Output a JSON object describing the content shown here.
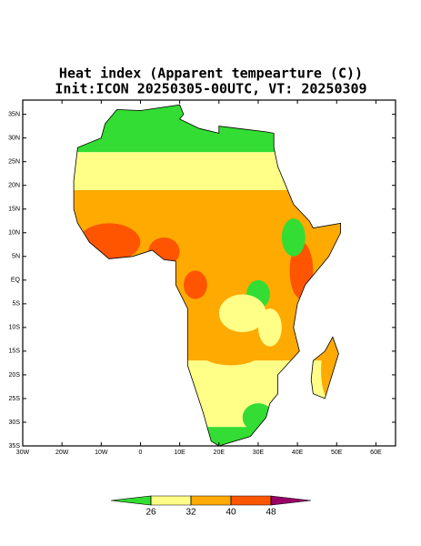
{
  "map": {
    "title": "Heat index (Apparent tempearture (C))",
    "subtitle": "Init:ICON 20250305-00UTC, VT: 20250309",
    "lonlim": [
      -30,
      65
    ],
    "latlim": [
      -35,
      38
    ],
    "lonticks": [
      {
        "value": -30,
        "label": "30W"
      },
      {
        "value": -20,
        "label": "20W"
      },
      {
        "value": -10,
        "label": "10W"
      },
      0,
      {
        "value": 10,
        "label": "10E"
      },
      {
        "value": 20,
        "label": "20E"
      },
      {
        "value": 30,
        "label": "30E"
      },
      {
        "value": 40,
        "label": "40E"
      },
      {
        "value": 50,
        "label": "50E"
      },
      {
        "value": 60,
        "label": "60E"
      }
    ],
    "latticks": [
      {
        "value": -35,
        "label": "35S"
      },
      {
        "value": -30,
        "label": "30S"
      },
      {
        "value": -25,
        "label": "25S"
      },
      {
        "value": -20,
        "label": "20S"
      },
      {
        "value": -15,
        "label": "15S"
      },
      {
        "value": -10,
        "label": "10S"
      },
      {
        "value": -5,
        "label": "5S"
      },
      {
        "value": 0,
        "label": "EQ"
      },
      {
        "value": 5,
        "label": "5N"
      },
      {
        "value": 10,
        "label": "10N"
      },
      {
        "value": 15,
        "label": "15N"
      },
      {
        "value": 20,
        "label": "20N"
      },
      {
        "value": 25,
        "label": "25N"
      },
      {
        "value": 30,
        "label": "30N"
      },
      {
        "value": 35,
        "label": "35N"
      }
    ],
    "colorbar": {
      "levels": [
        26,
        32,
        40,
        48
      ],
      "colors": [
        "#33dd33",
        "#ffff88",
        "#ffaa00",
        "#ff5500",
        "#990066"
      ]
    }
  }
}
